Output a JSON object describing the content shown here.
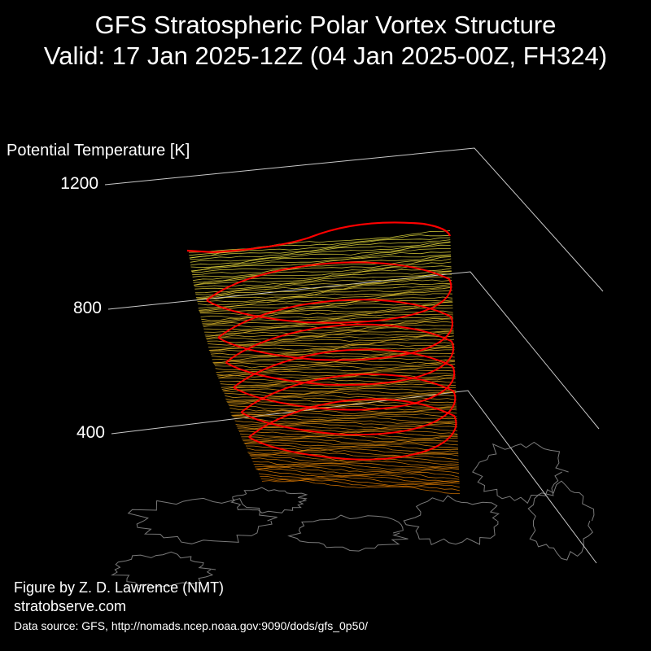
{
  "chart_data": {
    "type": "3d-isosurface",
    "title": "GFS Stratospheric Polar Vortex Structure",
    "subtitle": "Valid: 17 Jan 2025-12Z  (04 Jan 2025-00Z, FH324)",
    "zlabel": "Potential Temperature [K]",
    "z_ticks": [
      400,
      800,
      1200
    ],
    "zlim": [
      300,
      1200
    ],
    "red_contour_levels": [
      450,
      550,
      650,
      750,
      850,
      1000
    ],
    "colors": {
      "background": "#000000",
      "surface_low": "#e07a00",
      "surface_high": "#e8e040",
      "contour": "#ff0000",
      "coastline": "#7a7a7a",
      "axes": "#c8c8c8"
    }
  },
  "credits": {
    "author": "Figure by Z. D. Lawrence (NMT)",
    "site": "stratobserve.com",
    "source": "Data source: GFS, http://nomads.ncep.noaa.gov:9090/dods/gfs_0p50/"
  }
}
